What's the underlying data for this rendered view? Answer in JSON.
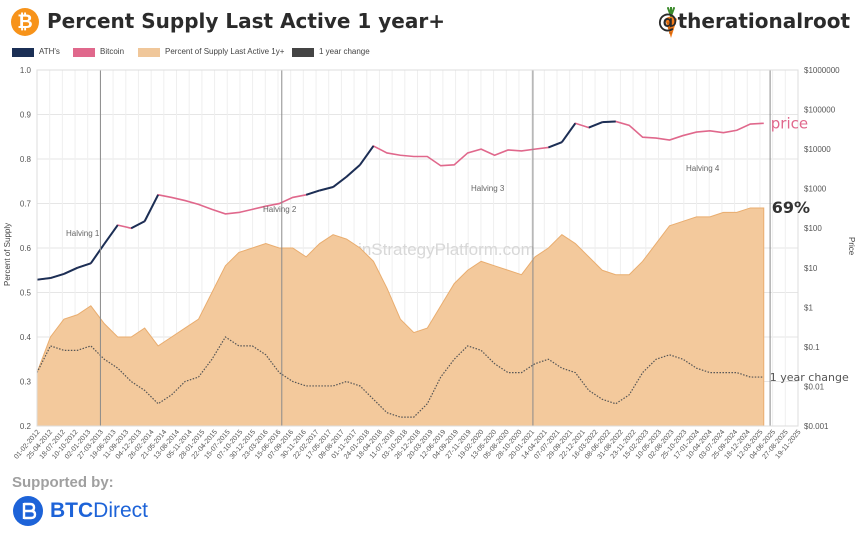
{
  "header": {
    "logo_glyph": "₿",
    "title": "Percent Supply Last Active 1 year+",
    "handle": "@therationalroot",
    "carrot_icon": "carrot-icon"
  },
  "legend": [
    {
      "label": "ATH's",
      "color": "#1b2f55"
    },
    {
      "label": "Bitcoin",
      "color": "#e0688c"
    },
    {
      "label": "Percent of Supply Last Active 1y+",
      "color": "#f0c79a"
    },
    {
      "label": "1 year change",
      "color": "#444444"
    }
  ],
  "watermark": "BitcoinStrategyPlatform.com",
  "footer": {
    "supported_by": "Supported by:",
    "brand_a": "BTC",
    "brand_b": "Direct",
    "brand_color": "#1d63d8"
  },
  "chart_data": {
    "type": "area",
    "ylabel": "Percent of Supply",
    "y2label": "Price",
    "ylim": [
      0.2,
      1.0
    ],
    "yticks": [
      "0.2",
      "0.3",
      "0.4",
      "0.5",
      "0.6",
      "0.7",
      "0.8",
      "0.9",
      "1.0"
    ],
    "y2lim_log10": [
      -3,
      6
    ],
    "y2ticks": [
      "$0.001",
      "$0.01",
      "$0.1",
      "$1",
      "$10",
      "$100",
      "$1000",
      "$10000",
      "$100000",
      "$1000000"
    ],
    "xticks": [
      "01-02-2012",
      "25-04-2012",
      "18-07-2012",
      "10-10-2012",
      "02-01-2013",
      "27-03-2013",
      "19-06-2013",
      "11-09-2013",
      "04-12-2013",
      "26-02-2014",
      "21-05-2014",
      "13-08-2014",
      "05-11-2014",
      "28-01-2015",
      "22-04-2015",
      "15-07-2015",
      "07-10-2015",
      "30-12-2015",
      "23-03-2016",
      "15-06-2016",
      "07-09-2016",
      "30-11-2016",
      "22-02-2017",
      "17-05-2017",
      "09-08-2017",
      "01-11-2017",
      "24-01-2018",
      "18-04-2018",
      "11-07-2018",
      "03-10-2018",
      "26-12-2018",
      "20-03-2019",
      "12-06-2019",
      "04-09-2019",
      "27-11-2019",
      "19-02-2020",
      "13-05-2020",
      "05-08-2020",
      "28-10-2020",
      "20-01-2021",
      "14-04-2021",
      "07-07-2021",
      "29-09-2021",
      "22-12-2021",
      "16-03-2022",
      "08-06-2022",
      "31-08-2022",
      "23-11-2022",
      "15-02-2023",
      "10-05-2023",
      "02-08-2023",
      "25-10-2023",
      "17-01-2024",
      "10-04-2024",
      "03-07-2024",
      "25-09-2024",
      "18-12-2024",
      "12-03-2025",
      "04-06-2025",
      "27-08-2025",
      "19-11-2025"
    ],
    "halvings": [
      {
        "label": "Halving 1",
        "tick_index": 5.0
      },
      {
        "label": "Halving 2",
        "tick_index": 19.3
      },
      {
        "label": "Halving 3",
        "tick_index": 39.1
      },
      {
        "label": "Halving 4",
        "tick_index": 57.8
      }
    ],
    "annotations": {
      "price": "price",
      "value": "69%",
      "change": "1 year change"
    },
    "series": [
      {
        "name": "Percent of Supply Last Active 1y+",
        "x": [
          0,
          1,
          2,
          3,
          4,
          5,
          6,
          7,
          8,
          9,
          10,
          11,
          12,
          13,
          14,
          15,
          16,
          17,
          18,
          19,
          20,
          21,
          22,
          23,
          24,
          25,
          26,
          27,
          28,
          29,
          30,
          31,
          32,
          33,
          34,
          35,
          36,
          37,
          38,
          39,
          40,
          41,
          42,
          43,
          44,
          45,
          46,
          47,
          48,
          49,
          50,
          51,
          52,
          53,
          54
        ],
        "values": [
          0.32,
          0.4,
          0.44,
          0.45,
          0.47,
          0.43,
          0.4,
          0.4,
          0.42,
          0.38,
          0.4,
          0.42,
          0.44,
          0.5,
          0.56,
          0.59,
          0.6,
          0.61,
          0.6,
          0.6,
          0.58,
          0.61,
          0.63,
          0.62,
          0.6,
          0.57,
          0.51,
          0.44,
          0.41,
          0.42,
          0.47,
          0.52,
          0.55,
          0.57,
          0.56,
          0.55,
          0.54,
          0.58,
          0.6,
          0.63,
          0.61,
          0.58,
          0.55,
          0.54,
          0.54,
          0.57,
          0.61,
          0.65,
          0.66,
          0.67,
          0.67,
          0.68,
          0.68,
          0.69,
          0.69
        ]
      },
      {
        "name": "Bitcoin",
        "x": [
          0,
          1,
          2,
          3,
          4,
          5,
          6,
          7,
          8,
          9,
          10,
          11,
          12,
          13,
          14,
          15,
          16,
          17,
          18,
          19,
          20,
          21,
          22,
          23,
          24,
          25,
          26,
          27,
          28,
          29,
          30,
          31,
          32,
          33,
          34,
          35,
          36,
          37,
          38,
          39,
          40,
          41,
          42,
          43,
          44,
          45,
          46,
          47,
          48,
          49,
          50,
          51,
          52,
          53,
          54
        ],
        "values": [
          5,
          5.5,
          7,
          10,
          13,
          40,
          120,
          100,
          150,
          700,
          600,
          500,
          400,
          300,
          230,
          250,
          300,
          360,
          420,
          600,
          700,
          900,
          1100,
          2000,
          4000,
          12000,
          8000,
          7000,
          6500,
          6500,
          3800,
          4000,
          8000,
          10000,
          7000,
          9500,
          9000,
          10000,
          11000,
          15000,
          45000,
          35000,
          48000,
          50000,
          40000,
          20000,
          19000,
          17000,
          22000,
          27000,
          29000,
          26000,
          30000,
          43000,
          45000
        ]
      },
      {
        "name": "1 year change",
        "x": [
          0,
          1,
          2,
          3,
          4,
          5,
          6,
          7,
          8,
          9,
          10,
          11,
          12,
          13,
          14,
          15,
          16,
          17,
          18,
          19,
          20,
          21,
          22,
          23,
          24,
          25,
          26,
          27,
          28,
          29,
          30,
          31,
          32,
          33,
          34,
          35,
          36,
          37,
          38,
          39,
          40,
          41,
          42,
          43,
          44,
          45,
          46,
          47,
          48,
          49,
          50,
          51,
          52,
          53,
          54
        ],
        "values": [
          0.32,
          0.38,
          0.37,
          0.37,
          0.38,
          0.35,
          0.33,
          0.3,
          0.28,
          0.25,
          0.27,
          0.3,
          0.31,
          0.35,
          0.4,
          0.38,
          0.38,
          0.36,
          0.32,
          0.3,
          0.29,
          0.29,
          0.29,
          0.3,
          0.29,
          0.26,
          0.23,
          0.22,
          0.22,
          0.25,
          0.31,
          0.35,
          0.38,
          0.37,
          0.34,
          0.32,
          0.32,
          0.34,
          0.35,
          0.33,
          0.32,
          0.28,
          0.26,
          0.25,
          0.27,
          0.32,
          0.35,
          0.36,
          0.35,
          0.33,
          0.32,
          0.32,
          0.32,
          0.31,
          0.31
        ]
      }
    ]
  }
}
